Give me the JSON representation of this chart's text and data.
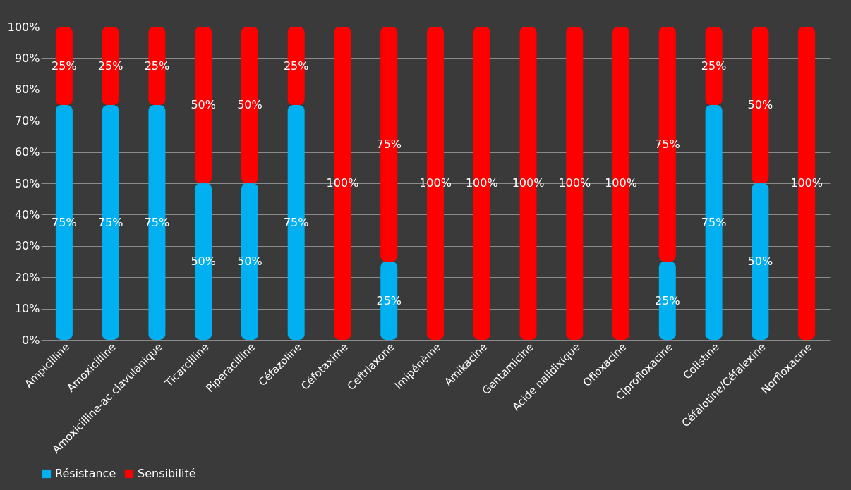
{
  "chart_data": {
    "type": "bar",
    "stacked": true,
    "categories": [
      "Ampicilline",
      "Amoxicilline",
      "Amoxicilline-ac.clavulanique",
      "Ticarcilline",
      "Pipéracilline",
      "Céfazoline",
      "Céfotaxime",
      "Ceftriaxone",
      "Imipénème",
      "Amikacine",
      "Gentamicine",
      "Acide nalidixique",
      "Ofloxacine",
      "Ciprofloxacine",
      "Colistine",
      "Céfalotine/Céfalexine",
      "Norfloxacine"
    ],
    "series": [
      {
        "name": "Résistance",
        "color": "#00b0f0",
        "values": [
          75,
          75,
          75,
          50,
          50,
          75,
          0,
          25,
          0,
          0,
          0,
          0,
          0,
          25,
          75,
          50,
          0
        ],
        "value_labels": [
          "75%",
          "75%",
          "75%",
          "50%",
          "50%",
          "75%",
          null,
          "25%",
          null,
          null,
          null,
          null,
          null,
          "25%",
          "75%",
          "50%",
          null
        ]
      },
      {
        "name": "Sensibilité",
        "color": "#ff0000",
        "values": [
          25,
          25,
          25,
          50,
          50,
          25,
          100,
          75,
          100,
          100,
          100,
          100,
          100,
          75,
          25,
          50,
          100
        ],
        "value_labels": [
          "25%",
          "25%",
          "25%",
          "50%",
          "50%",
          "25%",
          "100%",
          "75%",
          "100%",
          "100%",
          "100%",
          "100%",
          "100%",
          "75%",
          "25%",
          "50%",
          "100%"
        ]
      }
    ],
    "ylim": [
      0,
      100
    ],
    "yticks": [
      {
        "value": 0,
        "label": "0%"
      },
      {
        "value": 10,
        "label": "10%"
      },
      {
        "value": 20,
        "label": "20%"
      },
      {
        "value": 30,
        "label": "30%"
      },
      {
        "value": 40,
        "label": "40%"
      },
      {
        "value": 50,
        "label": "50%"
      },
      {
        "value": 60,
        "label": "60%"
      },
      {
        "value": 70,
        "label": "70%"
      },
      {
        "value": 80,
        "label": "80%"
      },
      {
        "value": 90,
        "label": "90%"
      },
      {
        "value": 100,
        "label": "100%"
      }
    ],
    "grid": "y",
    "legend": "bottom"
  }
}
